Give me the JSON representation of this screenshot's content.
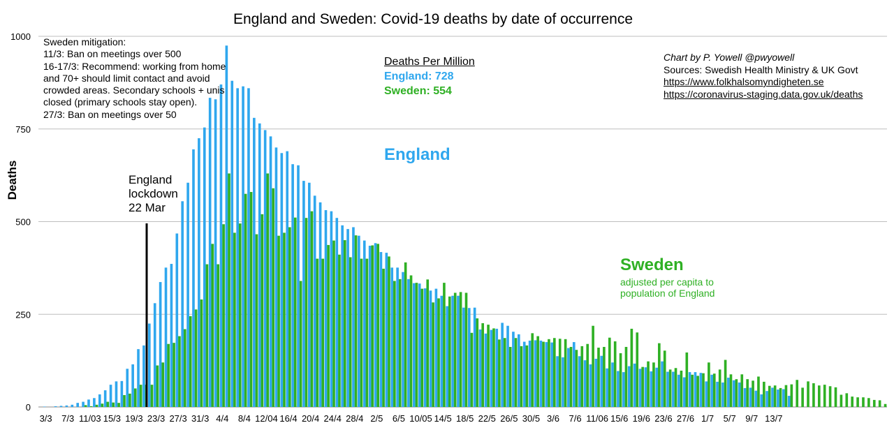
{
  "title": "England and Sweden: Covid-19 deaths by date of occurrence",
  "mitigation": {
    "lines": [
      "Sweden mitigation:",
      "11/3: Ban on meetings over 500",
      "16-17/3: Recommend: working from home and 70+ should limit contact and avoid crowded areas. Secondary schools + unis closed (primary schools stay open).",
      "27/3: Ban on meetings over 50"
    ]
  },
  "deaths_per_million": {
    "heading": "Deaths Per Million",
    "england": "England: 728",
    "sweden": "Sweden: 554"
  },
  "credit": {
    "by": "Chart by P. Yowell @pwyowell",
    "sources": "Sources: Swedish Health Ministry & UK Govt",
    "link1": "https://www.folkhalsomyndigheten.se",
    "link2": "https://coronavirus-staging.data.gov.uk/deaths"
  },
  "labels": {
    "england": "England",
    "sweden": "Sweden",
    "sweden_note": "adjusted per capita to population of England",
    "lockdown": [
      "England",
      "lockdown",
      "22 Mar"
    ]
  },
  "colors": {
    "england": "#2fa7ee",
    "sweden": "#2fb024",
    "grid": "#bdbdbd",
    "marker": "#000000"
  },
  "chart_data": {
    "type": "bar",
    "ylabel": "Deaths",
    "ylim": [
      0,
      1000
    ],
    "y_ticks": [
      0,
      250,
      500,
      750,
      1000
    ],
    "x_tick_labels": [
      "3/3",
      "7/3",
      "11/03",
      "15/3",
      "19/3",
      "23/3",
      "27/3",
      "31/3",
      "4/4",
      "8/4",
      "12/04",
      "16/4",
      "20/4",
      "24/4",
      "28/4",
      "2/5",
      "6/5",
      "10/05",
      "14/5",
      "18/5",
      "22/5",
      "26/5",
      "30/5",
      "3/6",
      "7/6",
      "11/06",
      "15/6",
      "19/6",
      "23/6",
      "27/6",
      "1/7",
      "5/7",
      "9/7",
      "13/7"
    ],
    "grid": true,
    "legend": "none",
    "lockdown_index": 19,
    "series": [
      {
        "name": "England",
        "values": [
          1,
          0,
          2,
          3,
          4,
          6,
          11,
          14,
          20,
          24,
          34,
          45,
          60,
          69,
          70,
          103,
          115,
          156,
          166,
          225,
          280,
          337,
          376,
          386,
          468,
          555,
          605,
          695,
          725,
          754,
          834,
          830,
          870,
          975,
          880,
          860,
          865,
          860,
          780,
          765,
          747,
          730,
          700,
          685,
          690,
          655,
          652,
          610,
          605,
          570,
          552,
          531,
          528,
          510,
          490,
          480,
          485,
          462,
          449,
          435,
          442,
          418,
          416,
          376,
          376,
          364,
          345,
          334,
          333,
          320,
          314,
          319,
          300,
          272,
          300,
          300,
          268,
          267,
          268,
          209,
          198,
          208,
          211,
          227,
          219,
          203,
          196,
          176,
          179,
          180,
          179,
          175,
          174,
          137,
          134,
          159,
          175,
          137,
          126,
          115,
          130,
          138,
          104,
          120,
          97,
          94,
          110,
          117,
          103,
          107,
          96,
          106,
          123,
          95,
          95,
          87,
          80,
          94,
          94,
          92,
          69,
          87,
          68,
          66,
          79,
          72,
          66,
          51,
          52,
          44,
          34,
          43,
          52,
          47,
          48,
          30
        ],
        "row2_note": ""
      },
      {
        "name": "Sweden",
        "values": [
          0,
          0,
          0,
          0,
          0,
          0,
          0,
          5,
          2,
          6,
          9,
          14,
          12,
          11,
          32,
          36,
          50,
          60,
          60,
          60,
          112,
          120,
          170,
          173,
          191,
          210,
          245,
          263,
          290,
          385,
          440,
          385,
          493,
          630,
          470,
          495,
          575,
          580,
          466,
          520,
          630,
          590,
          462,
          470,
          485,
          511,
          340,
          510,
          528,
          400,
          400,
          437,
          449,
          411,
          450,
          404,
          463,
          400,
          400,
          436,
          440,
          373,
          406,
          340,
          345,
          390,
          355,
          335,
          319,
          344,
          282,
          293,
          335,
          298,
          308,
          310,
          308,
          200,
          239,
          226,
          222,
          212,
          182,
          186,
          162,
          186,
          164,
          166,
          199,
          191,
          176,
          183,
          186,
          184,
          183,
          162,
          154,
          164,
          170,
          219,
          160,
          162,
          187,
          177,
          145,
          162,
          211,
          201,
          108,
          123,
          120,
          172,
          152,
          101,
          105,
          98,
          147,
          87,
          84,
          91,
          120,
          90,
          101,
          127,
          88,
          75,
          88,
          75,
          71,
          82,
          68,
          57,
          58,
          51,
          59,
          61,
          73,
          52,
          69,
          64,
          58,
          60,
          56,
          53,
          33,
          37,
          28,
          26,
          26,
          24,
          19,
          18,
          8
        ]
      }
    ]
  }
}
